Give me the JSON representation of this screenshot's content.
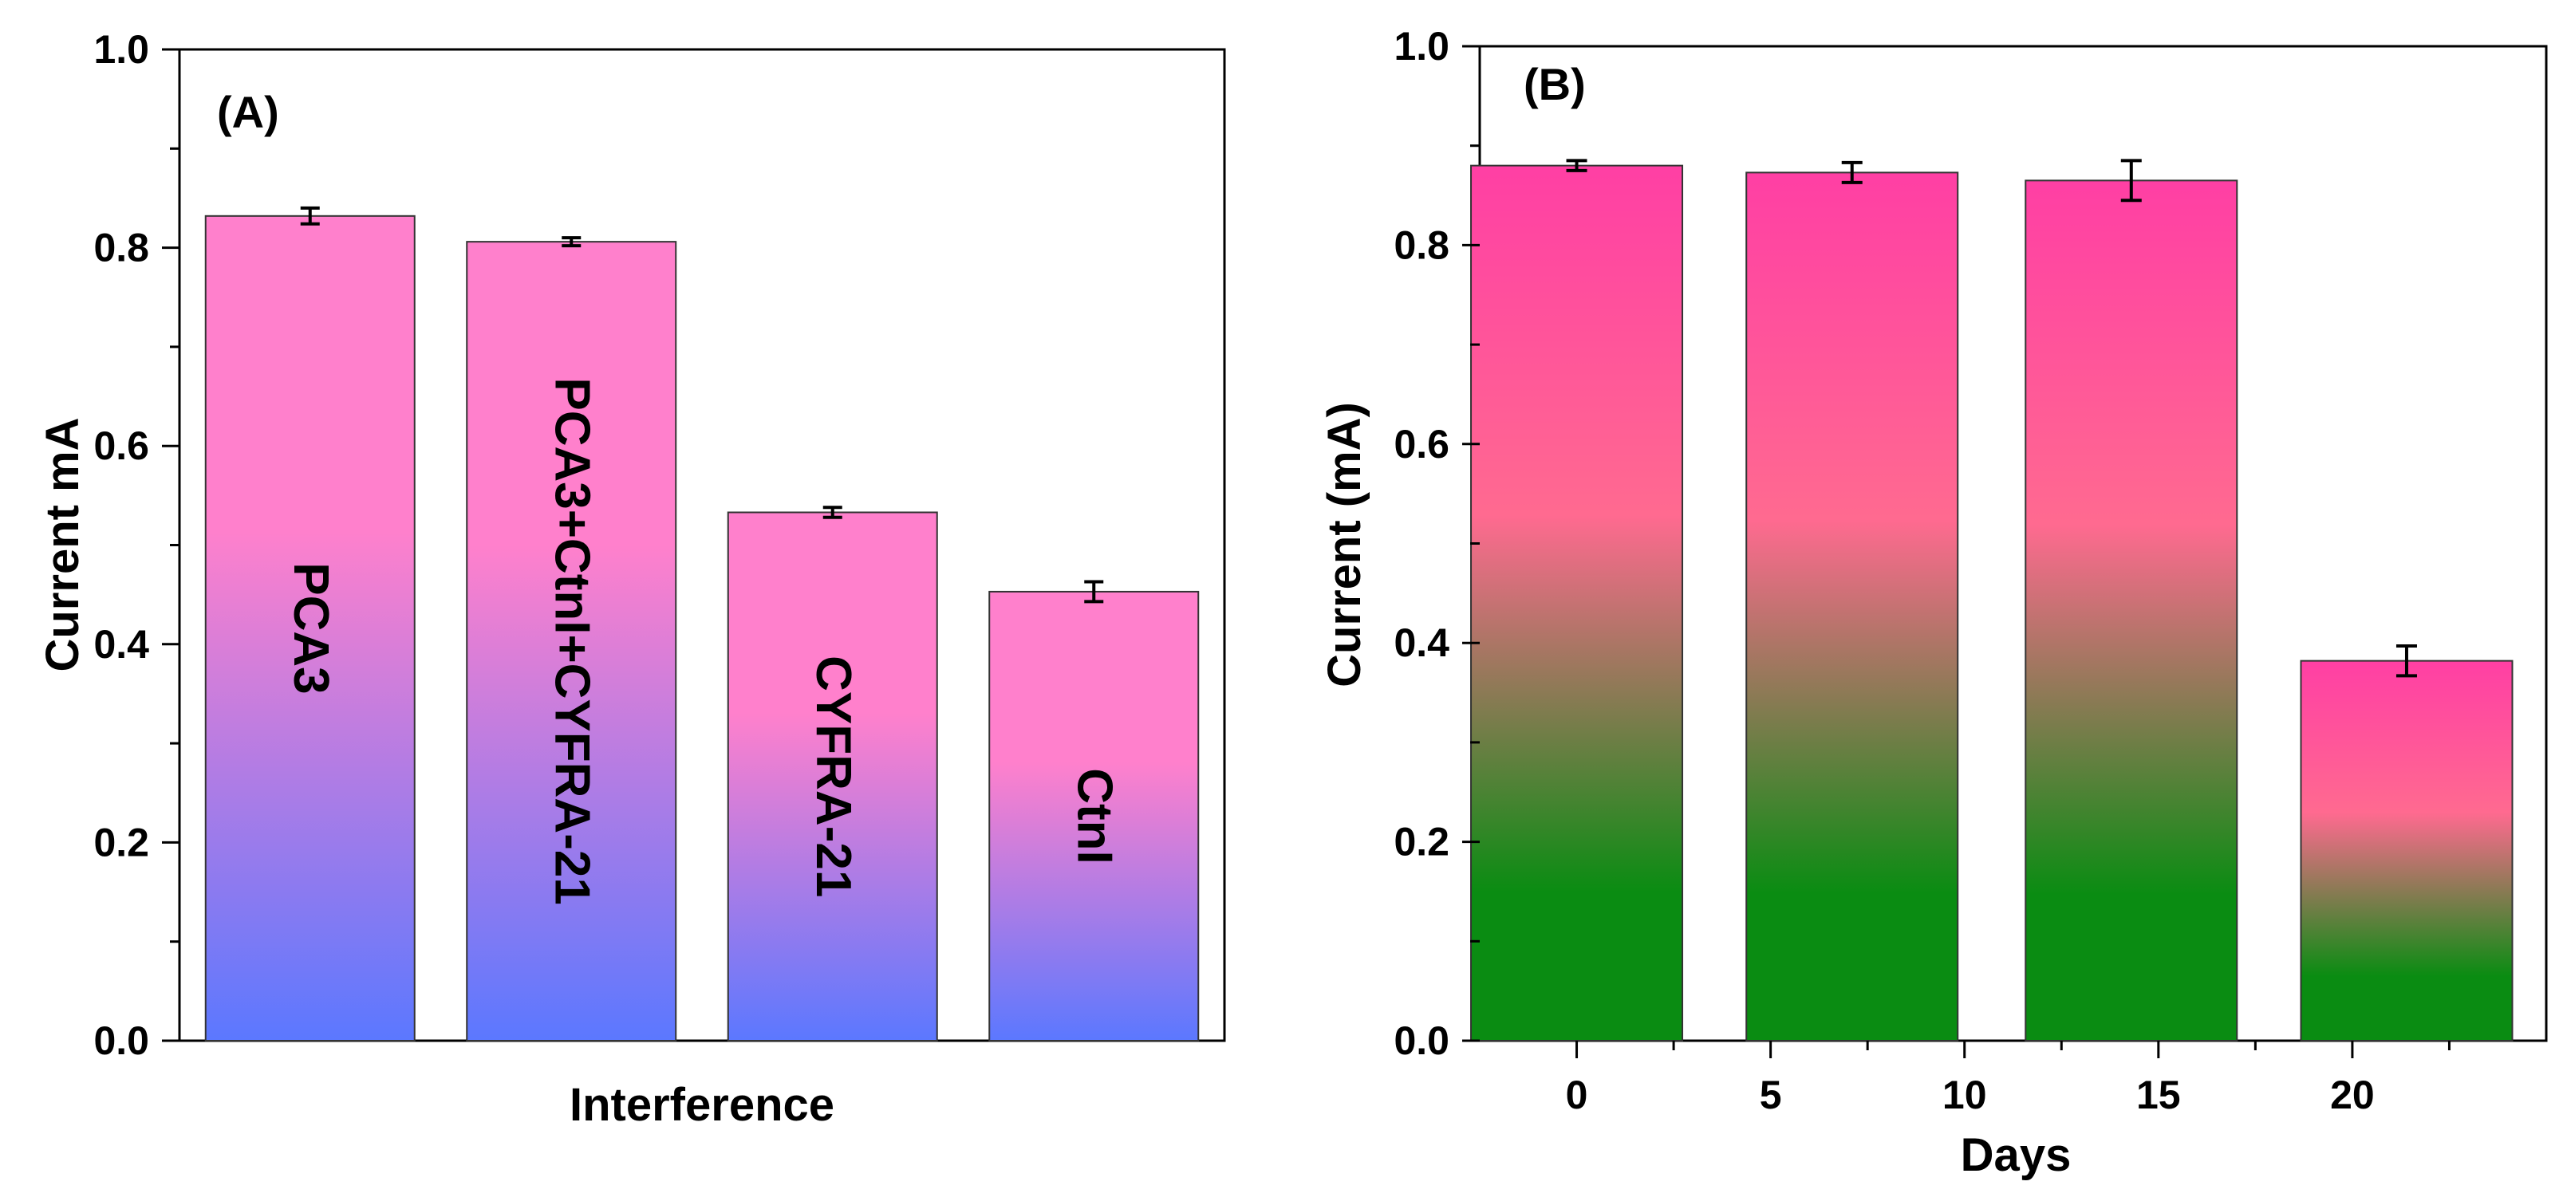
{
  "colors": {
    "panel_a_top": "#ff80cc",
    "panel_a_bottom": "#5b78ff",
    "panel_b_top": "#ff3fa4",
    "panel_b_mid": "#ff6a90",
    "panel_b_bottom": "#0a8c12"
  },
  "chart_data": [
    {
      "type": "bar",
      "panel_label": "(A)",
      "title": "",
      "xlabel": "Interference",
      "ylabel": "Current mA",
      "ylim": [
        0,
        1.0
      ],
      "yticks": [
        0.0,
        0.2,
        0.4,
        0.6,
        0.8,
        1.0
      ],
      "ytick_labels": [
        "0.0",
        "0.2",
        "0.4",
        "0.6",
        "0.8",
        "1.0"
      ],
      "grid": false,
      "categories": [
        "PCA3",
        "PCA3+CtnI+CYFRA-21",
        "CYFRA-21",
        "CtnI"
      ],
      "values": [
        0.832,
        0.806,
        0.533,
        0.453
      ],
      "errors": [
        0.008,
        0.004,
        0.005,
        0.01
      ],
      "xtick_labels": []
    },
    {
      "type": "bar",
      "panel_label": "(B)",
      "title": "",
      "xlabel": "Days",
      "ylabel": "Current (mA)",
      "ylim": [
        0,
        1.0
      ],
      "yticks": [
        0.0,
        0.2,
        0.4,
        0.6,
        0.8,
        1.0
      ],
      "ytick_labels": [
        "0.0",
        "0.2",
        "0.4",
        "0.6",
        "0.8",
        "1.0"
      ],
      "grid": false,
      "xlim": [
        -2.5,
        25
      ],
      "xticks": [
        0,
        5,
        10,
        15,
        20
      ],
      "xtick_labels": [
        "0",
        "5",
        "10",
        "15",
        "20"
      ],
      "bar_centers_x": [
        0,
        7.1,
        14.3,
        21.4
      ],
      "categories": [
        "0",
        "7",
        "14",
        "21"
      ],
      "values": [
        0.88,
        0.873,
        0.865,
        0.382
      ],
      "errors": [
        0.005,
        0.01,
        0.02,
        0.015
      ]
    }
  ]
}
